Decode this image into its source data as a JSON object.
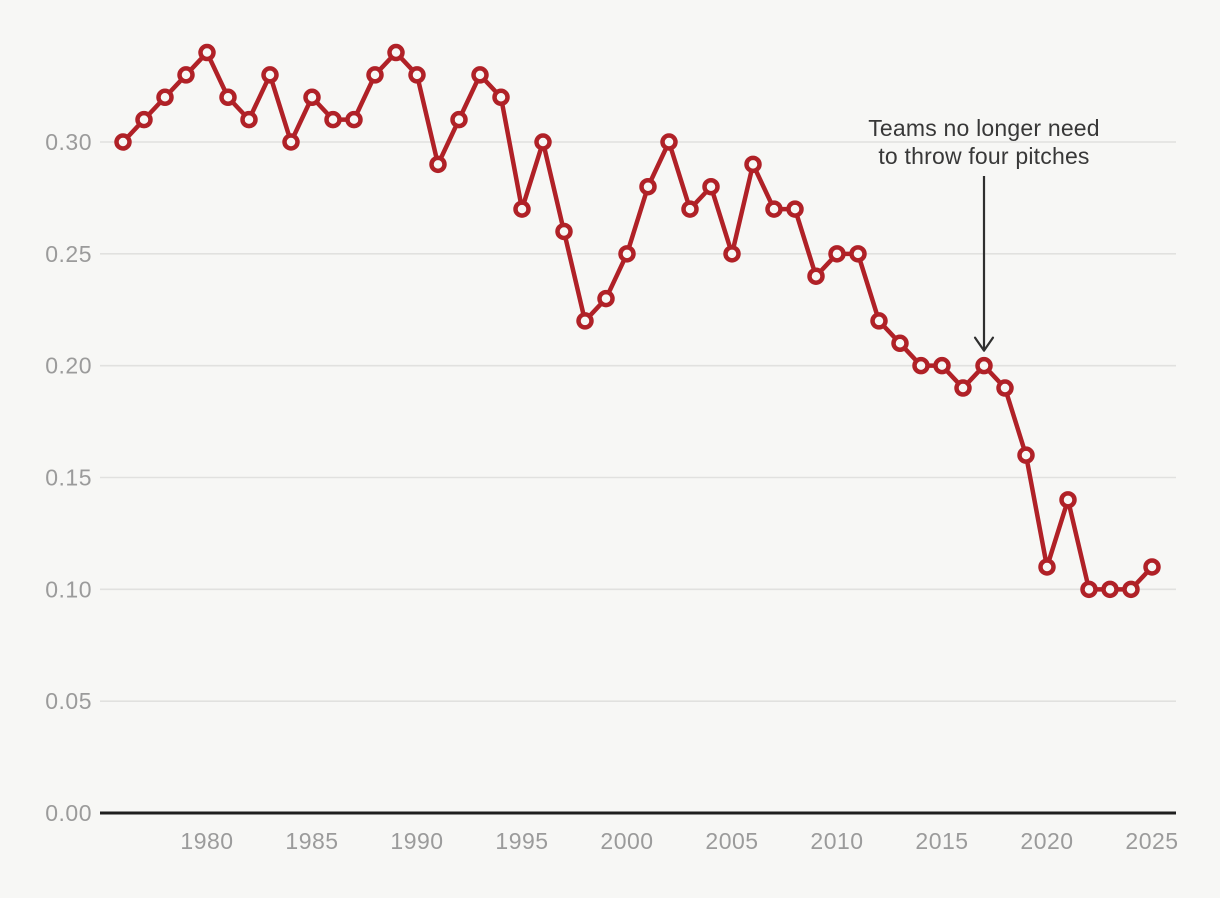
{
  "chart_data": {
    "type": "line",
    "title": "",
    "xlabel": "",
    "ylabel": "",
    "x": [
      1976,
      1977,
      1978,
      1979,
      1980,
      1981,
      1982,
      1983,
      1984,
      1985,
      1986,
      1987,
      1988,
      1989,
      1990,
      1991,
      1992,
      1993,
      1994,
      1995,
      1996,
      1997,
      1998,
      1999,
      2000,
      2001,
      2002,
      2003,
      2004,
      2005,
      2006,
      2007,
      2008,
      2009,
      2010,
      2011,
      2012,
      2013,
      2014,
      2015,
      2016,
      2017,
      2018,
      2019,
      2020,
      2021,
      2022,
      2023,
      2024,
      2025
    ],
    "values": [
      0.3,
      0.31,
      0.32,
      0.33,
      0.34,
      0.32,
      0.31,
      0.33,
      0.3,
      0.32,
      0.31,
      0.31,
      0.33,
      0.34,
      0.33,
      0.29,
      0.31,
      0.33,
      0.32,
      0.27,
      0.3,
      0.26,
      0.22,
      0.23,
      0.25,
      0.28,
      0.3,
      0.27,
      0.28,
      0.25,
      0.29,
      0.27,
      0.27,
      0.24,
      0.25,
      0.25,
      0.22,
      0.21,
      0.2,
      0.2,
      0.19,
      0.2,
      0.19,
      0.16,
      0.11,
      0.14,
      0.1,
      0.1,
      0.1,
      0.11
    ],
    "ylim": [
      0,
      0.345
    ],
    "grid": true,
    "y_ticks": [
      {
        "value": 0.0,
        "label": "0.00"
      },
      {
        "value": 0.05,
        "label": "0.05"
      },
      {
        "value": 0.1,
        "label": "0.10"
      },
      {
        "value": 0.15,
        "label": "0.15"
      },
      {
        "value": 0.2,
        "label": "0.20"
      },
      {
        "value": 0.25,
        "label": "0.25"
      },
      {
        "value": 0.3,
        "label": "0.30"
      }
    ],
    "x_ticks": [
      {
        "value": 1980,
        "label": "1980"
      },
      {
        "value": 1985,
        "label": "1985"
      },
      {
        "value": 1990,
        "label": "1990"
      },
      {
        "value": 1995,
        "label": "1995"
      },
      {
        "value": 2000,
        "label": "2000"
      },
      {
        "value": 2005,
        "label": "2005"
      },
      {
        "value": 2010,
        "label": "2010"
      },
      {
        "value": 2015,
        "label": "2015"
      },
      {
        "value": 2020,
        "label": "2020"
      },
      {
        "value": 2025,
        "label": "2025"
      }
    ],
    "annotation": {
      "line1": "Teams no longer need",
      "line2": "to throw four pitches",
      "target_year": 2017,
      "target_value": 0.2
    },
    "colors": {
      "line": "#b02127",
      "marker_fill": "#f7f7f5",
      "background": "#f7f7f5",
      "grid": "#e1e1df",
      "axis": "#1f1f1f",
      "tick_label": "#9b9b9b",
      "annotation_text": "#383838",
      "arrow": "#2f2f2f"
    }
  }
}
